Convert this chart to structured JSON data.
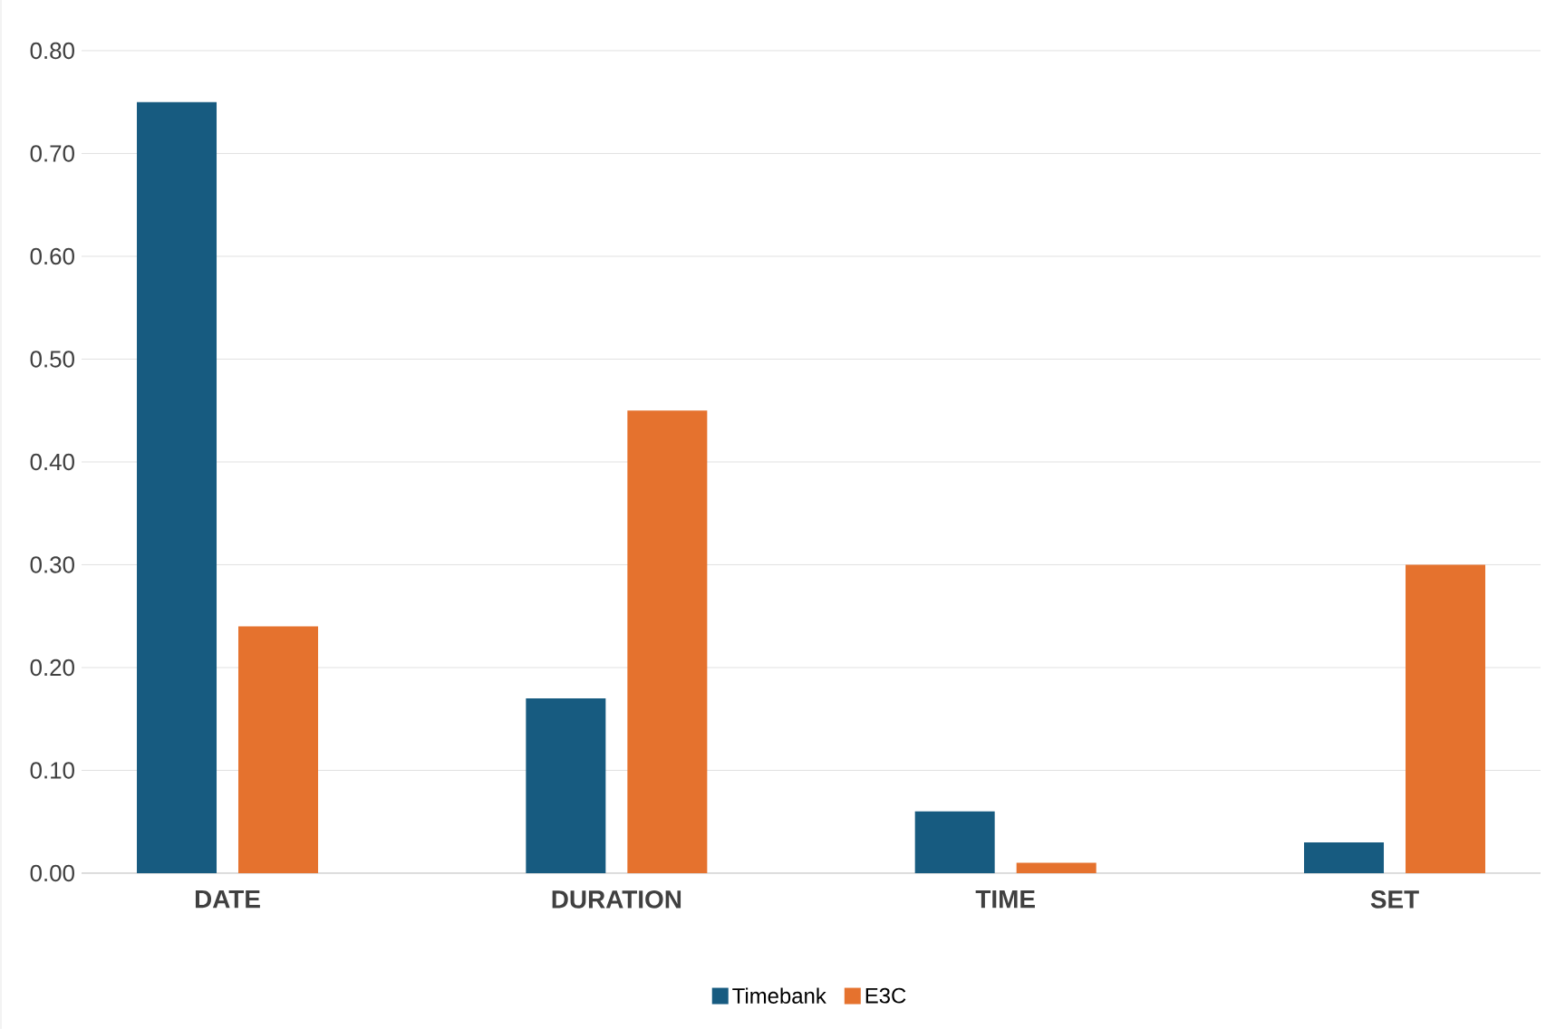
{
  "chart_data": {
    "type": "bar",
    "categories": [
      "DATE",
      "DURATION",
      "TIME",
      "SET"
    ],
    "series": [
      {
        "name": "Timebank",
        "color": "#175b80",
        "values": [
          0.75,
          0.17,
          0.06,
          0.03
        ]
      },
      {
        "name": "E3C",
        "color": "#e5722e",
        "values": [
          0.24,
          0.45,
          0.01,
          0.3
        ]
      }
    ],
    "ylim": [
      0,
      0.8
    ],
    "yticks": [
      {
        "value": 0,
        "label": "0.00"
      },
      {
        "value": 0.1,
        "label": "0.10"
      },
      {
        "value": 0.2,
        "label": "0.20"
      },
      {
        "value": 0.3,
        "label": "0.30"
      },
      {
        "value": 0.4,
        "label": "0.40"
      },
      {
        "value": 0.5,
        "label": "0.50"
      },
      {
        "value": 0.6,
        "label": "0.60"
      },
      {
        "value": 0.7,
        "label": "0.70"
      },
      {
        "value": 0.8,
        "label": "0.80"
      }
    ],
    "grid": "y",
    "legend": "bottom"
  }
}
